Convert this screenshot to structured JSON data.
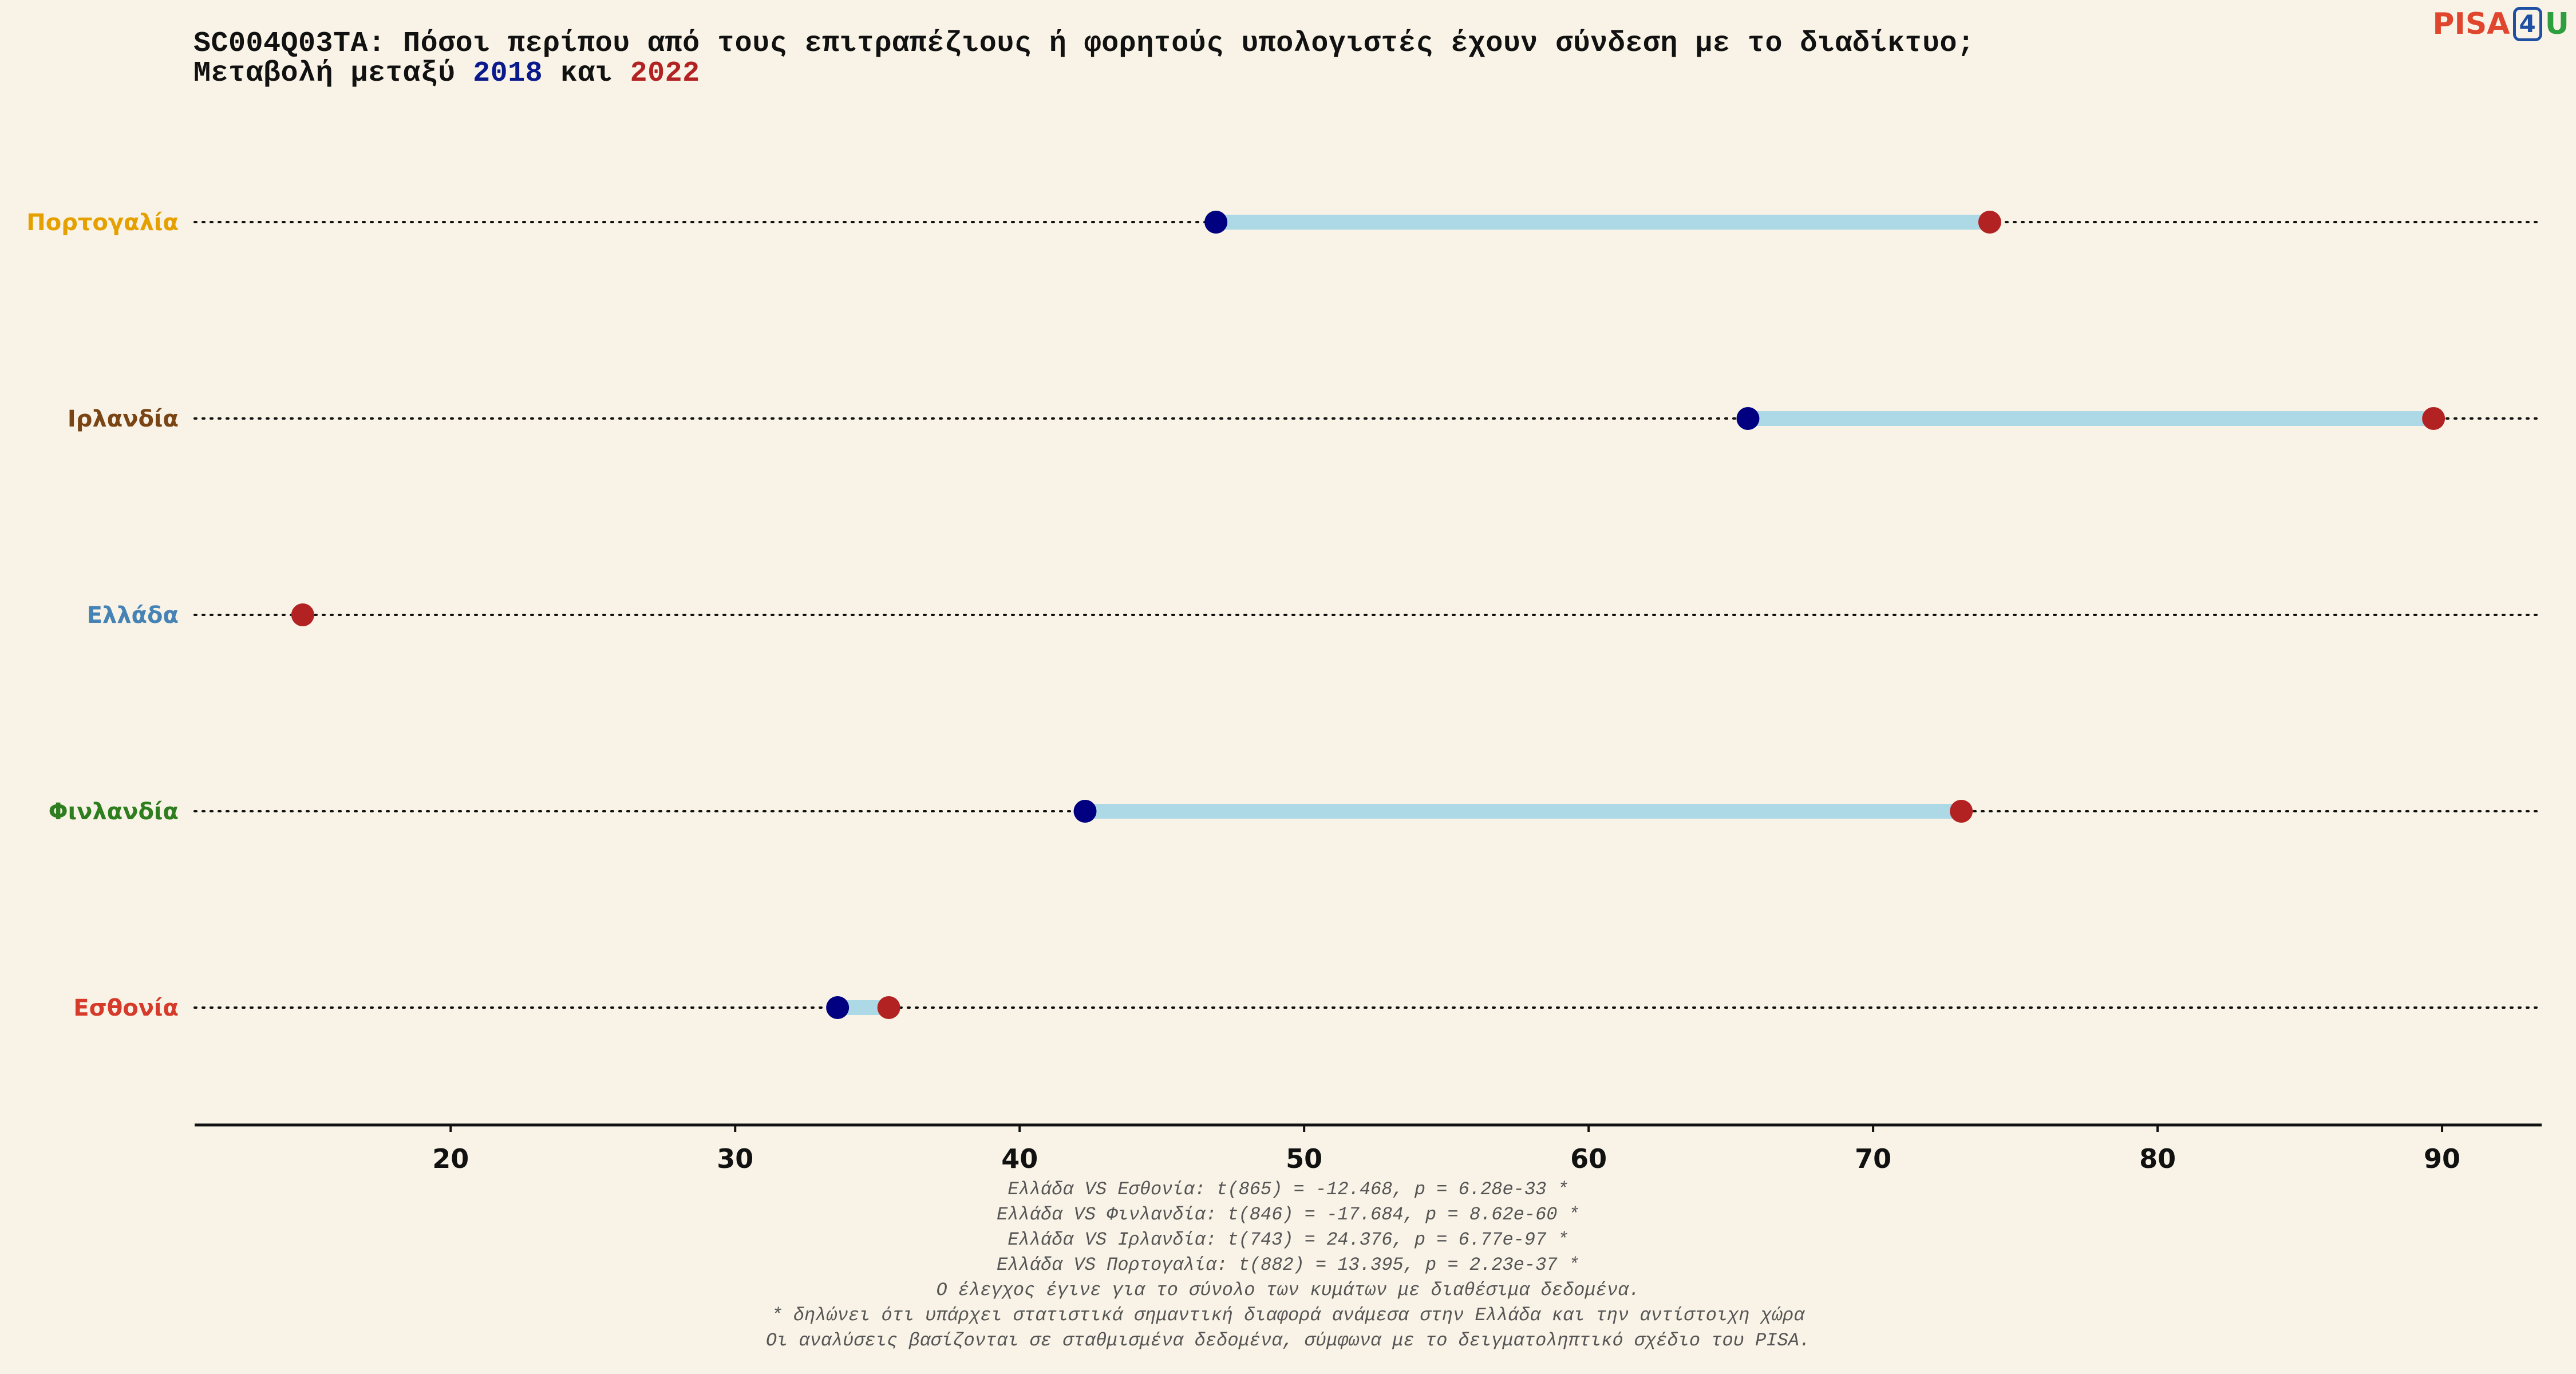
{
  "header": {
    "title_line1": "SC004Q03TA: Πόσοι περίπου από τους επιτραπέζιους ή φορητούς υπολογιστές έχουν σύνδεση με το διαδίκτυο;",
    "title_line2_prefix": "Μεταβολή μεταξύ ",
    "year_a": "2018",
    "title_line2_mid": " και ",
    "year_b": "2022"
  },
  "logo": {
    "part1": "PISA",
    "part2": "4",
    "part3": "U"
  },
  "chart_data": {
    "type": "dumbbell",
    "title": "SC004Q03TA: Πόσοι περίπου από τους επιτραπέζιους ή φορητούς υπολογιστές έχουν σύνδεση με το διαδίκτυο; Μεταβολή μεταξύ 2018 και 2022",
    "xlim": [
      11,
      93.5
    ],
    "xticks": [
      20,
      30,
      40,
      50,
      60,
      70,
      80,
      90
    ],
    "legend": "none",
    "grid": false,
    "colors": {
      "year_2018": "#000080",
      "year_2022": "#b22222",
      "connector": "#add8e6"
    },
    "categories": [
      {
        "name": "Πορτογαλία",
        "color": "#e5a000",
        "v2018": 46.9,
        "v2022": 74.1
      },
      {
        "name": "Ιρλανδία",
        "color": "#7a4515",
        "v2018": 65.6,
        "v2022": 89.7
      },
      {
        "name": "Ελλάδα",
        "color": "#4682b4",
        "v2018": null,
        "v2022": 14.8
      },
      {
        "name": "Φινλανδία",
        "color": "#2e7d1f",
        "v2018": 42.3,
        "v2022": 73.1
      },
      {
        "name": "Εσθονία",
        "color": "#d63a2b",
        "v2018": 33.6,
        "v2022": 35.4
      }
    ]
  },
  "notes": [
    "Ελλάδα VS Εσθονία: t(865) = -12.468, p = 6.28e-33 *",
    "Ελλάδα VS Φινλανδία: t(846) = -17.684, p = 8.62e-60 *",
    "Ελλάδα VS Ιρλανδία: t(743) = 24.376, p = 6.77e-97 *",
    "Ελλάδα VS Πορτογαλία: t(882) = 13.395, p = 2.23e-37 *",
    "Ο έλεγχος έγινε για το σύνολο των κυμάτων με διαθέσιμα δεδομένα.",
    "* δηλώνει ότι υπάρχει στατιστικά σημαντική διαφορά ανάμεσα στην Ελλάδα και την αντίστοιχη χώρα",
    "Οι αναλύσεις βασίζονται σε σταθμισμένα δεδομένα, σύμφωνα με το δειγματοληπτικό σχέδιο του PISA."
  ]
}
